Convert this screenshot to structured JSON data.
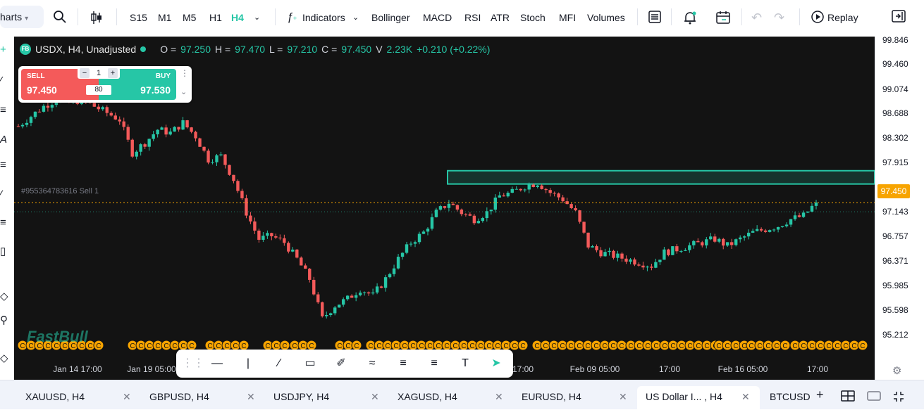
{
  "toolbar": {
    "charts_label": "harts",
    "timeframes": [
      "S15",
      "M1",
      "M5",
      "H1",
      "H4"
    ],
    "active_timeframe": "H4",
    "indicators_label": "Indicators",
    "indicator_shortcuts": [
      "Bollinger",
      "MACD",
      "RSI",
      "ATR",
      "Stoch",
      "MFI",
      "Volumes"
    ],
    "replay_label": "Replay"
  },
  "legend": {
    "logo": "FB",
    "symbol": "USDX, H4, Unadjusted",
    "o_label": "O =",
    "o": "97.250",
    "h_label": "H =",
    "h": "97.470",
    "l_label": "L =",
    "l": "97.210",
    "c_label": "C =",
    "c": "97.450",
    "v_label": "V",
    "v": "2.23K",
    "change": "+0.210 (+0.22%)"
  },
  "trade_panel": {
    "sell_label": "SELL",
    "sell_price": "97.450",
    "buy_label": "BUY",
    "buy_price": "97.530",
    "quantity": "1",
    "spread": "80"
  },
  "order_line_label": "#955364783616 Sell 1",
  "watermark": "FastBull",
  "price_axis": [
    "99.846",
    "99.460",
    "99.074",
    "98.688",
    "98.302",
    "97.915",
    "97.450",
    "97.143",
    "96.757",
    "96.371",
    "95.985",
    "95.598",
    "95.212"
  ],
  "current_price": "97.450",
  "time_axis": [
    "Jan 14 17:00",
    "Jan 19 05:00",
    "17:00",
    "Feb 09 05:00",
    "17:00",
    "Feb 16 05:00",
    "17:00"
  ],
  "tabs": [
    {
      "label": "XAUUSD, H4"
    },
    {
      "label": "GBPUSD, H4"
    },
    {
      "label": "USDJPY, H4"
    },
    {
      "label": "XAGUSD, H4"
    },
    {
      "label": "EURUSD, H4"
    },
    {
      "label": "US Dollar I... , H4"
    },
    {
      "label": "BTCUSD"
    }
  ],
  "colors": {
    "up": "#26c6a6",
    "down": "#f45a5a",
    "accent": "#26c6a6",
    "price_tag": "#f7a400"
  },
  "chart_data": {
    "type": "candlestick",
    "title": "USDX, H4, Unadjusted",
    "ylim": [
      95.1,
      99.95
    ],
    "x_labels": [
      "Jan 14 17:00",
      "Jan 19 05:00",
      "17:00",
      "Feb 09 05:00",
      "17:00",
      "Feb 16 05:00",
      "17:00"
    ],
    "approx_close_path": [
      98.6,
      98.75,
      98.9,
      99.0,
      98.95,
      99.0,
      98.9,
      98.8,
      98.7,
      98.2,
      98.35,
      98.55,
      98.5,
      98.65,
      98.45,
      98.1,
      98.15,
      97.8,
      97.3,
      96.9,
      96.95,
      96.85,
      96.6,
      96.3,
      95.7,
      95.9,
      96.0,
      96.15,
      96.05,
      96.3,
      96.6,
      96.85,
      97.0,
      97.3,
      97.45,
      97.3,
      97.2,
      97.3,
      97.55,
      97.6,
      97.7,
      97.75,
      97.6,
      97.5,
      97.3,
      96.8,
      96.7,
      96.65,
      96.6,
      96.55,
      96.5,
      96.7,
      96.75,
      96.8,
      96.85,
      96.9,
      96.8,
      96.9,
      97.0,
      97.05,
      97.1,
      97.2,
      97.25,
      97.45
    ],
    "supply_zone": [
      97.73,
      97.93
    ],
    "order_line": 97.45,
    "current_price": 97.45
  }
}
